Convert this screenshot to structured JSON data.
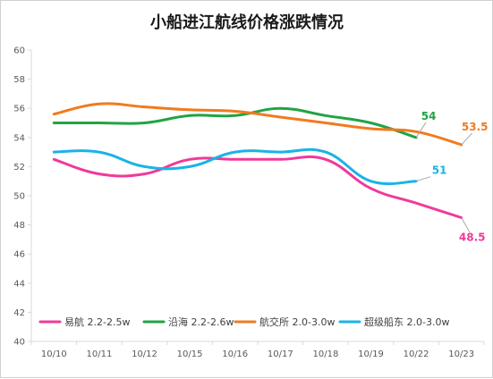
{
  "chart_data": {
    "type": "line",
    "title": "小船进江航线价格涨跌情况",
    "xlabel": "",
    "ylabel": "",
    "categories": [
      "10/10",
      "10/11",
      "10/12",
      "10/15",
      "10/16",
      "10/17",
      "10/18",
      "10/19",
      "10/22",
      "10/23"
    ],
    "ylim": [
      40,
      60
    ],
    "yticks": [
      40,
      42,
      44,
      46,
      48,
      50,
      52,
      54,
      56,
      58,
      60
    ],
    "grid": false,
    "legend_position": "bottom",
    "series": [
      {
        "name": "易航 2.2-2.5w",
        "color": "#f0399b",
        "values": [
          52.5,
          51.5,
          51.5,
          52.5,
          52.5,
          52.5,
          52.5,
          50.5,
          49.5,
          48.5
        ],
        "end_label": "48.5"
      },
      {
        "name": "沿海 2.2-2.6w",
        "color": "#22a344",
        "values": [
          55,
          55,
          55,
          55.5,
          55.5,
          56,
          55.5,
          55,
          54,
          null
        ],
        "end_label": "54"
      },
      {
        "name": "航交所 2.0-3.0w",
        "color": "#f07b1e",
        "values": [
          55.6,
          56.3,
          56.1,
          55.9,
          55.8,
          55.4,
          55,
          54.6,
          54.4,
          53.5
        ],
        "end_label": "53.5"
      },
      {
        "name": "超级船东 2.0-3.0w",
        "color": "#1ab3e6",
        "values": [
          53,
          53,
          52,
          52,
          53,
          53,
          53,
          51,
          51,
          null
        ],
        "end_label": "51"
      }
    ]
  }
}
